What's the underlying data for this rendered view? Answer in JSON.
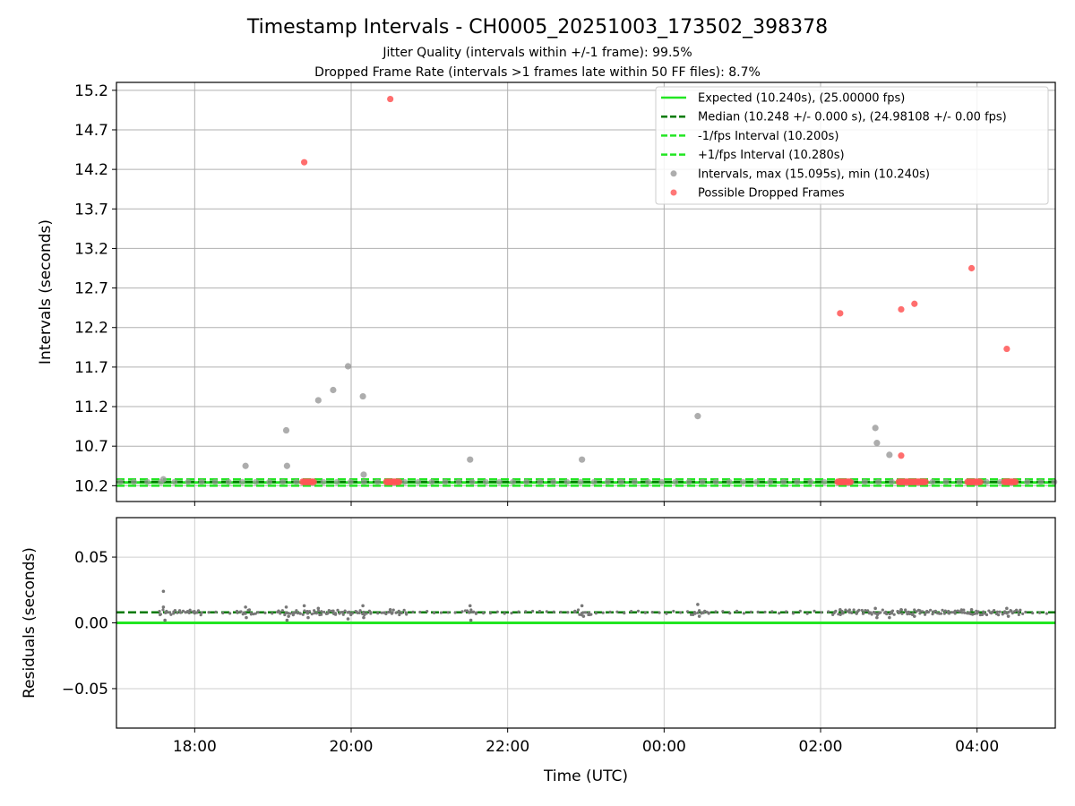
{
  "chart_data": [
    {
      "type": "scatter",
      "title": "Timestamp Intervals - CH0005_20251003_173502_398378",
      "subtitle_lines": [
        "Jitter Quality (intervals within +/-1 frame): 99.5%",
        "Dropped Frame Rate (intervals >1 frames late within 50 FF files): 8.7%"
      ],
      "xlabel": "",
      "ylabel": "Intervals (seconds)",
      "x_unit": "hours since 18:00 UTC",
      "xlim": [
        -1.0,
        11.0
      ],
      "ylim": [
        10.0,
        15.3
      ],
      "yticks": [
        10.2,
        10.7,
        11.2,
        11.7,
        12.2,
        12.7,
        13.2,
        13.7,
        14.2,
        14.7,
        15.2
      ],
      "ytick_labels": [
        "10.2",
        "10.7",
        "11.2",
        "11.7",
        "12.2",
        "12.7",
        "13.2",
        "13.7",
        "14.2",
        "14.7",
        "15.2"
      ],
      "grid": true,
      "legend_position": "top-right",
      "lines": [
        {
          "name": "Expected (10.240s), (25.00000 fps)",
          "y": 10.24,
          "color": "#22e622",
          "style": "solid"
        },
        {
          "name": "Median (10.248 +/- 0.000 s), (24.98108 +/- 0.00 fps)",
          "y": 10.248,
          "color": "#007a00",
          "style": "dashed"
        },
        {
          "name": "-1/fps Interval (10.200s)",
          "y": 10.2,
          "color": "#22e622",
          "style": "dashed"
        },
        {
          "name": "+1/fps Interval (10.280s)",
          "y": 10.28,
          "color": "#22e622",
          "style": "dashed"
        }
      ],
      "series": [
        {
          "name": "Intervals, max (15.095s), min (10.240s)",
          "color": "#999999",
          "baseline_y": 10.248,
          "baseline_x_start": -1.0,
          "baseline_x_end": 11.0,
          "baseline_step": 0.173,
          "points": [
            [
              -0.4,
              10.28
            ],
            [
              0.65,
              10.45
            ],
            [
              1.17,
              10.9
            ],
            [
              1.18,
              10.45
            ],
            [
              1.58,
              11.28
            ],
            [
              1.77,
              11.41
            ],
            [
              1.96,
              11.71
            ],
            [
              2.15,
              11.33
            ],
            [
              2.16,
              10.34
            ],
            [
              3.52,
              10.53
            ],
            [
              4.95,
              10.53
            ],
            [
              6.43,
              11.08
            ],
            [
              8.7,
              10.93
            ],
            [
              8.72,
              10.74
            ],
            [
              8.88,
              10.59
            ]
          ]
        },
        {
          "name": "Possible Dropped Frames",
          "color": "#ff5555",
          "points": [
            [
              1.4,
              14.29
            ],
            [
              2.5,
              15.09
            ],
            [
              8.25,
              12.38
            ],
            [
              9.03,
              12.43
            ],
            [
              9.2,
              12.5
            ],
            [
              9.93,
              12.95
            ],
            [
              10.38,
              11.93
            ],
            [
              9.03,
              10.58
            ]
          ],
          "clusters": [
            {
              "x_start": 1.38,
              "x_end": 1.52,
              "y": 10.248
            },
            {
              "x_start": 2.45,
              "x_end": 2.62,
              "y": 10.248
            },
            {
              "x_start": 8.22,
              "x_end": 8.38,
              "y": 10.248
            },
            {
              "x_start": 9.0,
              "x_end": 9.35,
              "y": 10.248
            },
            {
              "x_start": 9.88,
              "x_end": 10.05,
              "y": 10.248
            },
            {
              "x_start": 10.35,
              "x_end": 10.5,
              "y": 10.248
            }
          ]
        }
      ]
    },
    {
      "type": "scatter",
      "title": "",
      "xlabel": "Time (UTC)",
      "ylabel": "Residuals (seconds)",
      "x_unit": "hours since 18:00 UTC",
      "xlim": [
        -1.0,
        11.0
      ],
      "ylim": [
        -0.08,
        0.08
      ],
      "yticks": [
        -0.05,
        0.0,
        0.05
      ],
      "ytick_labels": [
        "−0.05",
        "0.00",
        "0.05"
      ],
      "xticks": [
        0,
        2,
        4,
        6,
        8,
        10
      ],
      "xtick_labels": [
        "18:00",
        "20:00",
        "22:00",
        "00:00",
        "02:00",
        "04:00"
      ],
      "grid": true,
      "lines": [
        {
          "name": "Expected",
          "y": 0.0,
          "color": "#22e622",
          "style": "solid"
        },
        {
          "name": "Median",
          "y": 0.008,
          "color": "#007a00",
          "style": "dashed"
        }
      ],
      "series": [
        {
          "name": "Residuals",
          "color": "#777777",
          "baseline_y": 0.008,
          "points": [
            [
              -0.4,
              0.024
            ],
            [
              -0.4,
              0.012
            ],
            [
              -0.38,
              0.002
            ],
            [
              0.65,
              0.012
            ],
            [
              0.66,
              0.004
            ],
            [
              1.17,
              0.012
            ],
            [
              1.18,
              0.002
            ],
            [
              1.2,
              0.005
            ],
            [
              1.4,
              0.013
            ],
            [
              1.45,
              0.004
            ],
            [
              1.58,
              0.011
            ],
            [
              1.77,
              0.009
            ],
            [
              1.96,
              0.003
            ],
            [
              2.15,
              0.013
            ],
            [
              2.16,
              0.004
            ],
            [
              2.5,
              0.01
            ],
            [
              3.52,
              0.013
            ],
            [
              3.53,
              0.002
            ],
            [
              4.95,
              0.013
            ],
            [
              4.97,
              0.005
            ],
            [
              6.43,
              0.014
            ],
            [
              6.45,
              0.005
            ],
            [
              8.25,
              0.01
            ],
            [
              8.7,
              0.011
            ],
            [
              8.72,
              0.004
            ],
            [
              8.88,
              0.004
            ],
            [
              9.03,
              0.01
            ],
            [
              9.2,
              0.005
            ],
            [
              9.93,
              0.01
            ],
            [
              10.38,
              0.011
            ],
            [
              10.4,
              0.005
            ]
          ],
          "dense_regions": [
            {
              "x_start": -0.45,
              "x_end": 0.1
            },
            {
              "x_start": 0.55,
              "x_end": 0.8
            },
            {
              "x_start": 1.05,
              "x_end": 2.25
            },
            {
              "x_start": 2.4,
              "x_end": 2.7
            },
            {
              "x_start": 3.45,
              "x_end": 3.6
            },
            {
              "x_start": 4.85,
              "x_end": 5.1
            },
            {
              "x_start": 6.35,
              "x_end": 6.6
            },
            {
              "x_start": 8.15,
              "x_end": 10.6
            }
          ]
        }
      ]
    }
  ]
}
